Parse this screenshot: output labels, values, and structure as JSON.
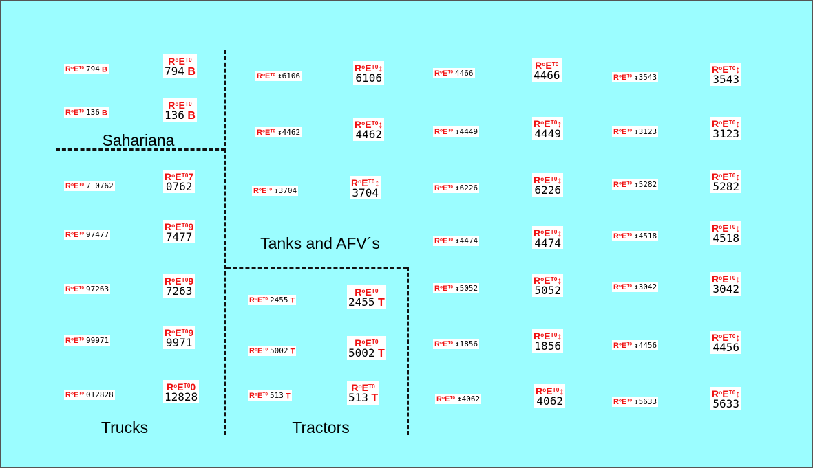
{
  "colors": {
    "background": "#9bfdff",
    "plate_prefix": "#ee1111",
    "line": "#111111"
  },
  "sections": {
    "sahariana": "Sahariana",
    "tanks": "Tanks and AFV´s",
    "trucks": "Trucks",
    "tractors": "Tractors"
  },
  "plates": [
    {
      "pfx_main": "R",
      "pfx_sup": "o",
      "pfx_e": "E",
      "pfx_t": "T0",
      "small_num": "794",
      "small_sfx": "B",
      "big_top_extra": "",
      "big_num": "794",
      "big_sfx": "B"
    },
    {
      "pfx_main": "R",
      "pfx_sup": "o",
      "pfx_e": "E",
      "pfx_t": "T0",
      "small_num": "136",
      "small_sfx": "B",
      "big_top_extra": "",
      "big_num": "136",
      "big_sfx": "B"
    },
    {
      "pfx_main": "R",
      "pfx_sup": "o",
      "pfx_e": "E",
      "pfx_t": "T0",
      "small_num": "7 0762",
      "small_sfx": "",
      "big_top_extra": "7",
      "big_num": "0762",
      "big_sfx": ""
    },
    {
      "pfx_main": "R",
      "pfx_sup": "o",
      "pfx_e": "E",
      "pfx_t": "T0",
      "small_num": "97477",
      "small_sfx": "",
      "big_top_extra": "9",
      "big_num": "7477",
      "big_sfx": ""
    },
    {
      "pfx_main": "R",
      "pfx_sup": "o",
      "pfx_e": "E",
      "pfx_t": "T0",
      "small_num": "97263",
      "small_sfx": "",
      "big_top_extra": "9",
      "big_num": "7263",
      "big_sfx": ""
    },
    {
      "pfx_main": "R",
      "pfx_sup": "o",
      "pfx_e": "E",
      "pfx_t": "T0",
      "small_num": "99971",
      "small_sfx": "",
      "big_top_extra": "9",
      "big_num": "9971",
      "big_sfx": ""
    },
    {
      "pfx_main": "R",
      "pfx_sup": "o",
      "pfx_e": "E",
      "pfx_t": "T0",
      "small_num": "012828",
      "small_sfx": "",
      "big_top_extra": "0",
      "big_num": "12828",
      "big_sfx": ""
    },
    {
      "pfx_main": "R",
      "pfx_sup": "o",
      "pfx_e": "E",
      "pfx_t": "T0",
      "small_num": "↕6106",
      "small_sfx": "",
      "big_top_extra": "↕",
      "big_num": "6106",
      "big_sfx": ""
    },
    {
      "pfx_main": "R",
      "pfx_sup": "o",
      "pfx_e": "E",
      "pfx_t": "T0",
      "small_num": "↕4462",
      "small_sfx": "",
      "big_top_extra": "↕",
      "big_num": "4462",
      "big_sfx": ""
    },
    {
      "pfx_main": "R",
      "pfx_sup": "o",
      "pfx_e": "E",
      "pfx_t": "T0",
      "small_num": "↕3704",
      "small_sfx": "",
      "big_top_extra": "↕",
      "big_num": "3704",
      "big_sfx": ""
    },
    {
      "pfx_main": "R",
      "pfx_sup": "o",
      "pfx_e": "E",
      "pfx_t": "T0",
      "small_num": "2455",
      "small_sfx": "T",
      "big_top_extra": "",
      "big_num": "2455",
      "big_sfx": "T"
    },
    {
      "pfx_main": "R",
      "pfx_sup": "o",
      "pfx_e": "E",
      "pfx_t": "T0",
      "small_num": "5002",
      "small_sfx": "T",
      "big_top_extra": "",
      "big_num": "5002",
      "big_sfx": "T"
    },
    {
      "pfx_main": "R",
      "pfx_sup": "o",
      "pfx_e": "E",
      "pfx_t": "T0",
      "small_num": "513",
      "small_sfx": "T",
      "big_top_extra": "",
      "big_num": "513",
      "big_sfx": "T"
    },
    {
      "pfx_main": "R",
      "pfx_sup": "o",
      "pfx_e": "E",
      "pfx_t": "T0",
      "small_num": "4466",
      "small_sfx": "",
      "big_top_extra": "",
      "big_num": "4466",
      "big_sfx": ""
    },
    {
      "pfx_main": "R",
      "pfx_sup": "o",
      "pfx_e": "E",
      "pfx_t": "T0",
      "small_num": "↕4449",
      "small_sfx": "",
      "big_top_extra": "↕",
      "big_num": "4449",
      "big_sfx": ""
    },
    {
      "pfx_main": "R",
      "pfx_sup": "o",
      "pfx_e": "E",
      "pfx_t": "T0",
      "small_num": "↕6226",
      "small_sfx": "",
      "big_top_extra": "↕",
      "big_num": "6226",
      "big_sfx": ""
    },
    {
      "pfx_main": "R",
      "pfx_sup": "o",
      "pfx_e": "E",
      "pfx_t": "T0",
      "small_num": "↕4474",
      "small_sfx": "",
      "big_top_extra": "↕",
      "big_num": "4474",
      "big_sfx": ""
    },
    {
      "pfx_main": "R",
      "pfx_sup": "o",
      "pfx_e": "E",
      "pfx_t": "T0",
      "small_num": "↕5052",
      "small_sfx": "",
      "big_top_extra": "↕",
      "big_num": "5052",
      "big_sfx": ""
    },
    {
      "pfx_main": "R",
      "pfx_sup": "o",
      "pfx_e": "E",
      "pfx_t": "T0",
      "small_num": "↕1856",
      "small_sfx": "",
      "big_top_extra": "↕",
      "big_num": "1856",
      "big_sfx": ""
    },
    {
      "pfx_main": "R",
      "pfx_sup": "o",
      "pfx_e": "E",
      "pfx_t": "T0",
      "small_num": "↕4062",
      "small_sfx": "",
      "big_top_extra": "↕",
      "big_num": "4062",
      "big_sfx": ""
    },
    {
      "pfx_main": "R",
      "pfx_sup": "o",
      "pfx_e": "E",
      "pfx_t": "T0",
      "small_num": "↕3543",
      "small_sfx": "",
      "big_top_extra": "↕",
      "big_num": "3543",
      "big_sfx": ""
    },
    {
      "pfx_main": "R",
      "pfx_sup": "o",
      "pfx_e": "E",
      "pfx_t": "T0",
      "small_num": "↕3123",
      "small_sfx": "",
      "big_top_extra": "↕",
      "big_num": "3123",
      "big_sfx": ""
    },
    {
      "pfx_main": "R",
      "pfx_sup": "o",
      "pfx_e": "E",
      "pfx_t": "T0",
      "small_num": "↕5282",
      "small_sfx": "",
      "big_top_extra": "↕",
      "big_num": "5282",
      "big_sfx": ""
    },
    {
      "pfx_main": "R",
      "pfx_sup": "o",
      "pfx_e": "E",
      "pfx_t": "T0",
      "small_num": "↕4518",
      "small_sfx": "",
      "big_top_extra": "↕",
      "big_num": "4518",
      "big_sfx": ""
    },
    {
      "pfx_main": "R",
      "pfx_sup": "o",
      "pfx_e": "E",
      "pfx_t": "T0",
      "small_num": "↕3042",
      "small_sfx": "",
      "big_top_extra": "↕",
      "big_num": "3042",
      "big_sfx": ""
    },
    {
      "pfx_main": "R",
      "pfx_sup": "o",
      "pfx_e": "E",
      "pfx_t": "T0",
      "small_num": "↕4456",
      "small_sfx": "",
      "big_top_extra": "↕",
      "big_num": "4456",
      "big_sfx": ""
    },
    {
      "pfx_main": "R",
      "pfx_sup": "o",
      "pfx_e": "E",
      "pfx_t": "T0",
      "small_num": "↕5633",
      "small_sfx": "",
      "big_top_extra": "↕",
      "big_num": "5633",
      "big_sfx": ""
    }
  ]
}
